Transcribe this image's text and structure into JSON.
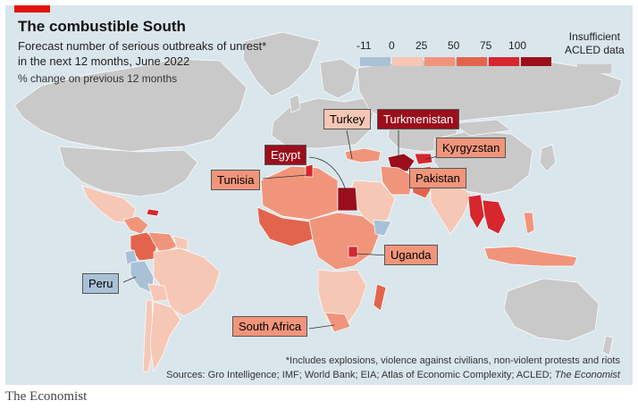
{
  "header": {
    "title": "The combustible South",
    "subtitle_line1": "Forecast number of serious outbreaks of unrest*",
    "subtitle_line2": "in the next 12 months, June 2022",
    "subtitle_line3": "% change on previous 12 months"
  },
  "legend": {
    "ticks": [
      "-11",
      "0",
      "25",
      "50",
      "75",
      "100"
    ],
    "colors": [
      "#a9c1d6",
      "#f7c7b5",
      "#f0957b",
      "#e3644d",
      "#d6262e",
      "#9b0e1c"
    ],
    "insufficient_line1": "Insufficient",
    "insufficient_line2": "ACLED data",
    "insufficient_color": "#c9c9c9"
  },
  "callouts": {
    "turkey": "Turkey",
    "turkmenistan": "Turkmenistan",
    "egypt": "Egypt",
    "kyrgyzstan": "Kyrgyzstan",
    "tunisia": "Tunisia",
    "pakistan": "Pakistan",
    "uganda": "Uganda",
    "peru": "Peru",
    "south_africa": "South Africa"
  },
  "footnote": {
    "line1": "*Includes explosions, violence against civilians, non-violent protests and riots",
    "line2_prefix": "Sources: Gro Intelligence; IMF; World Bank; EIA; Atlas of Economic Complexity; ACLED; ",
    "line2_italic": "The Economist"
  },
  "brand": "The Economist"
}
